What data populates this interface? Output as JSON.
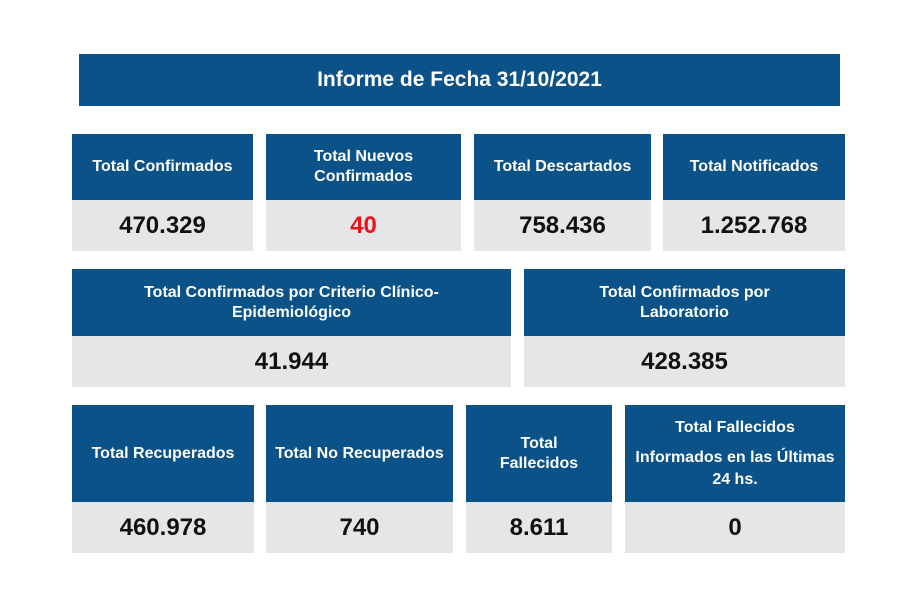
{
  "title": "Informe de Fecha 31/10/2021",
  "colors": {
    "header_bg": "#0a5287",
    "value_bg": "#e6e6e6",
    "value_text": "#111111",
    "highlight": "#e8141c"
  },
  "row1": [
    {
      "label": "Total Confirmados",
      "value": "470.329"
    },
    {
      "label": "Total Nuevos Confirmados",
      "value": "40"
    },
    {
      "label": "Total Descartados",
      "value": "758.436"
    },
    {
      "label": "Total Notificados",
      "value": "1.252.768"
    }
  ],
  "row2": [
    {
      "label": "Total Confirmados por Criterio Clínico-Epidemiológico",
      "value": "41.944"
    },
    {
      "label": "Total Confirmados por Laboratorio",
      "value": "428.385"
    }
  ],
  "row3": [
    {
      "label": "Total Recuperados",
      "value": "460.978"
    },
    {
      "label": "Total No Recuperados",
      "value": "740"
    },
    {
      "label": "Total Fallecidos",
      "value": "8.611"
    },
    {
      "label_line1": "Total Fallecidos",
      "label_line2": "Informados en las Últimas 24 hs.",
      "value": "0"
    }
  ]
}
